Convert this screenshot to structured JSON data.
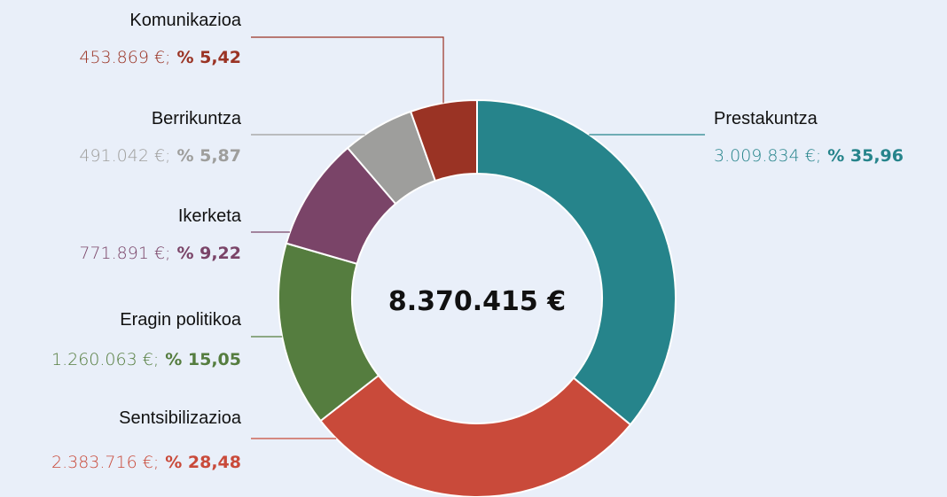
{
  "chart_data": {
    "type": "donut",
    "categories": [
      "Prestakuntza",
      "Sentsibilizazioa",
      "Eragin politikoa",
      "Ikerketa",
      "Berrikuntza",
      "Komunikazioa"
    ],
    "values": [
      3009834,
      2383716,
      1260063,
      771891,
      491042,
      453869
    ],
    "value_labels": [
      "3.009.834 €;",
      "2.383.716 €;",
      "1.260.063 €;",
      "771.891 €;",
      "491.042 €;",
      "453.869 €;"
    ],
    "percents": [
      35.96,
      28.48,
      15.05,
      9.22,
      5.87,
      5.42
    ],
    "percent_labels": [
      "% 35,96",
      "% 28,48",
      "% 15,05",
      "% 9,22",
      "% 5,87",
      "% 5,42"
    ],
    "colors": [
      "#26848b",
      "#c94a3a",
      "#557d3f",
      "#7a4468",
      "#9e9e9c",
      "#9a3324"
    ],
    "total": 8370415,
    "total_label": "8.370.415 €"
  }
}
